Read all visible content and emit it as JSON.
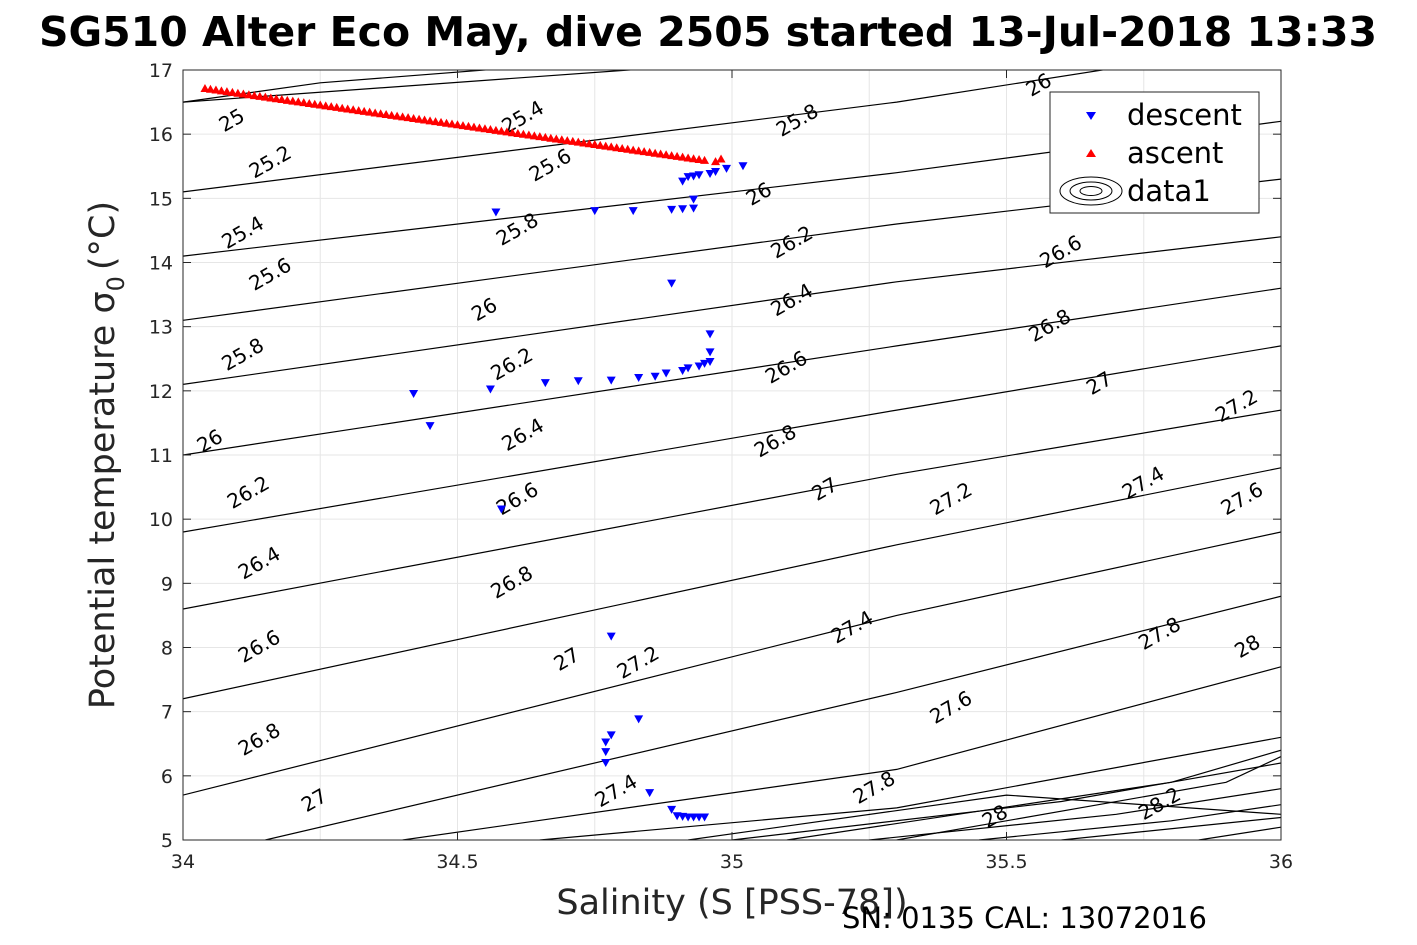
{
  "chart_data": {
    "type": "scatter",
    "title": "SG510 Alter Eco May, dive 2505 started 13-Jul-2018 13:33",
    "xlabel": "Salinity (S [PSS-78])",
    "ylabel": "Potential temperature σ",
    "ylabel_sub": "0",
    "ylabel_unit": "(°C)",
    "xlim": [
      34,
      36
    ],
    "ylim": [
      5,
      17
    ],
    "xticks": [
      34,
      34.5,
      35,
      35.5,
      36
    ],
    "xtick_labels": [
      "34",
      "34.5",
      "35",
      "35.5",
      "36"
    ],
    "yticks": [
      5,
      6,
      7,
      8,
      9,
      10,
      11,
      12,
      13,
      14,
      15,
      16,
      17
    ],
    "ytick_labels": [
      "5",
      "6",
      "7",
      "8",
      "9",
      "10",
      "11",
      "12",
      "13",
      "14",
      "15",
      "16",
      "17"
    ],
    "grid": true,
    "legend_position": "top-right",
    "series": [
      {
        "name": "descent",
        "marker": "triangle-down",
        "color": "#0000ff",
        "points": [
          [
            34.42,
            11.95
          ],
          [
            34.45,
            11.45
          ],
          [
            34.56,
            12.02
          ],
          [
            34.58,
            10.15
          ],
          [
            34.57,
            14.78
          ],
          [
            34.66,
            12.12
          ],
          [
            34.72,
            12.15
          ],
          [
            34.75,
            14.8
          ],
          [
            34.78,
            12.16
          ],
          [
            34.82,
            14.8
          ],
          [
            34.83,
            12.2
          ],
          [
            34.86,
            12.22
          ],
          [
            34.88,
            12.27
          ],
          [
            34.89,
            13.67
          ],
          [
            34.89,
            14.82
          ],
          [
            34.91,
            14.83
          ],
          [
            34.91,
            12.31
          ],
          [
            34.92,
            12.35
          ],
          [
            34.93,
            14.84
          ],
          [
            34.93,
            14.98
          ],
          [
            34.94,
            12.38
          ],
          [
            34.95,
            12.42
          ],
          [
            34.96,
            12.45
          ],
          [
            34.96,
            12.6
          ],
          [
            34.96,
            12.88
          ],
          [
            34.91,
            15.26
          ],
          [
            34.92,
            15.33
          ],
          [
            34.93,
            15.34
          ],
          [
            34.94,
            15.36
          ],
          [
            34.96,
            15.38
          ],
          [
            34.97,
            15.41
          ],
          [
            34.99,
            15.46
          ],
          [
            35.02,
            15.5
          ],
          [
            34.78,
            8.17
          ],
          [
            34.83,
            6.88
          ],
          [
            34.78,
            6.63
          ],
          [
            34.77,
            6.52
          ],
          [
            34.77,
            6.37
          ],
          [
            34.77,
            6.2
          ],
          [
            34.85,
            5.73
          ],
          [
            34.89,
            5.47
          ],
          [
            34.9,
            5.37
          ],
          [
            34.91,
            5.36
          ],
          [
            34.92,
            5.35
          ],
          [
            34.93,
            5.35
          ],
          [
            34.94,
            5.35
          ],
          [
            34.95,
            5.35
          ]
        ]
      },
      {
        "name": "ascent",
        "marker": "triangle-up",
        "color": "#ff0000",
        "line_from": [
          34.04,
          16.72
        ],
        "line_to": [
          34.95,
          15.6
        ],
        "line_count": 92,
        "extra_points": [
          [
            34.97,
            15.58
          ],
          [
            34.98,
            15.62
          ]
        ]
      },
      {
        "name": "data1",
        "type": "contour",
        "color": "#000000",
        "description_levels": [
          25,
          25.2,
          25.4,
          25.6,
          25.8,
          26,
          26.2,
          26.4,
          26.6,
          26.8,
          27,
          27.2,
          27.4,
          27.6,
          27.8,
          28,
          28.2
        ]
      }
    ],
    "contour_labels": [
      {
        "text": "25",
        "x": 34.09,
        "y": 16.2
      },
      {
        "text": "25.2",
        "x": 34.16,
        "y": 15.55
      },
      {
        "text": "25.4",
        "x": 34.11,
        "y": 14.45
      },
      {
        "text": "25.6",
        "x": 34.16,
        "y": 13.8
      },
      {
        "text": "25.8",
        "x": 34.11,
        "y": 12.55
      },
      {
        "text": "26",
        "x": 34.05,
        "y": 11.2
      },
      {
        "text": "26.2",
        "x": 34.12,
        "y": 10.4
      },
      {
        "text": "26.4",
        "x": 34.14,
        "y": 9.3
      },
      {
        "text": "26.6",
        "x": 34.14,
        "y": 8.0
      },
      {
        "text": "26.8",
        "x": 34.14,
        "y": 6.55
      },
      {
        "text": "27",
        "x": 34.24,
        "y": 5.6
      },
      {
        "text": "25.4",
        "x": 34.62,
        "y": 16.25
      },
      {
        "text": "25.6",
        "x": 34.67,
        "y": 15.5
      },
      {
        "text": "25.8",
        "x": 34.61,
        "y": 14.5
      },
      {
        "text": "26",
        "x": 34.55,
        "y": 13.25
      },
      {
        "text": "26.2",
        "x": 34.6,
        "y": 12.4
      },
      {
        "text": "26.4",
        "x": 34.62,
        "y": 11.3
      },
      {
        "text": "26.6",
        "x": 34.61,
        "y": 10.3
      },
      {
        "text": "26.8",
        "x": 34.6,
        "y": 9.0
      },
      {
        "text": "27",
        "x": 34.7,
        "y": 7.8
      },
      {
        "text": "27.2",
        "x": 34.83,
        "y": 7.75
      },
      {
        "text": "27.4",
        "x": 34.79,
        "y": 5.75
      },
      {
        "text": "25.8",
        "x": 35.12,
        "y": 16.2
      },
      {
        "text": "26",
        "x": 35.05,
        "y": 15.05
      },
      {
        "text": "26.2",
        "x": 35.11,
        "y": 14.3
      },
      {
        "text": "26.4",
        "x": 35.11,
        "y": 13.4
      },
      {
        "text": "26.6",
        "x": 35.1,
        "y": 12.35
      },
      {
        "text": "26.8",
        "x": 35.08,
        "y": 11.2
      },
      {
        "text": "27",
        "x": 35.17,
        "y": 10.45
      },
      {
        "text": "27.2",
        "x": 35.4,
        "y": 10.3
      },
      {
        "text": "27.4",
        "x": 35.22,
        "y": 8.3
      },
      {
        "text": "27.6",
        "x": 35.4,
        "y": 7.05
      },
      {
        "text": "27.8",
        "x": 35.26,
        "y": 5.8
      },
      {
        "text": "28",
        "x": 35.48,
        "y": 5.35
      },
      {
        "text": "26",
        "x": 35.56,
        "y": 16.75
      },
      {
        "text": "26.6",
        "x": 35.6,
        "y": 14.15
      },
      {
        "text": "26.8",
        "x": 35.58,
        "y": 13.0
      },
      {
        "text": "27",
        "x": 35.67,
        "y": 12.1
      },
      {
        "text": "27.2",
        "x": 35.92,
        "y": 11.75
      },
      {
        "text": "27.4",
        "x": 35.75,
        "y": 10.55
      },
      {
        "text": "27.6",
        "x": 35.93,
        "y": 10.3
      },
      {
        "text": "27.8",
        "x": 35.78,
        "y": 8.2
      },
      {
        "text": "28",
        "x": 35.94,
        "y": 8.0
      },
      {
        "text": "28.2",
        "x": 35.78,
        "y": 5.55
      }
    ],
    "footer": "SN: 0135  CAL: 13072016"
  }
}
